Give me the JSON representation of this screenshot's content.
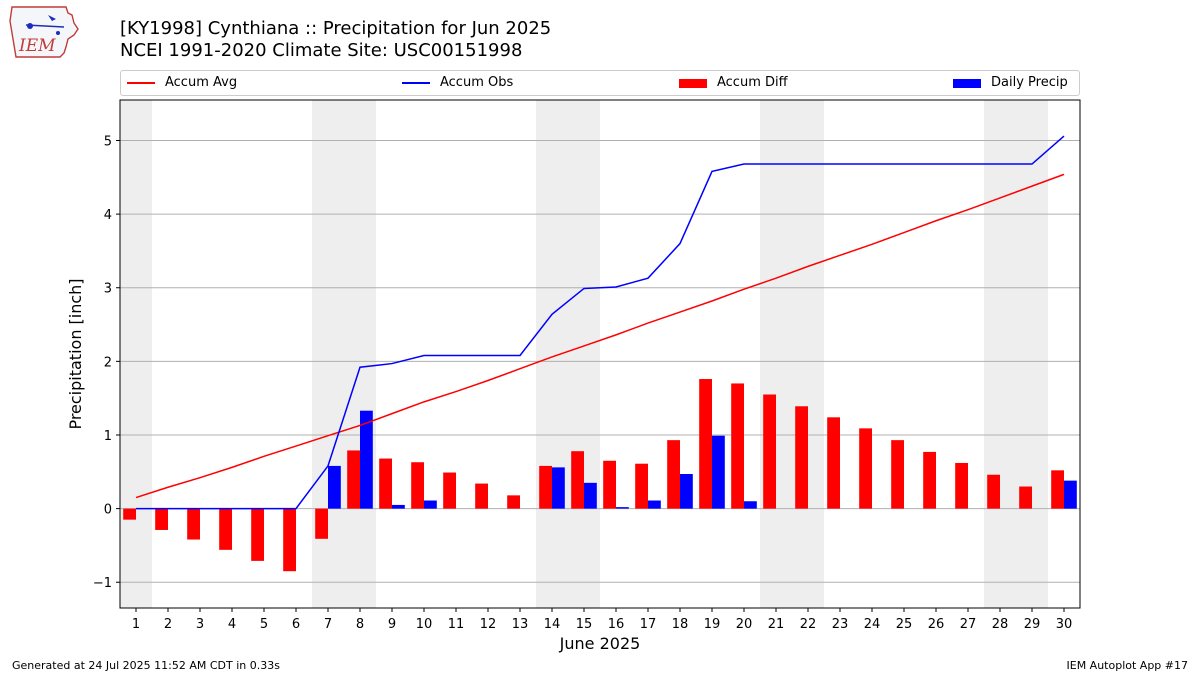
{
  "header": {
    "title": "[KY1998] Cynthiana :: Precipitation for Jun 2025",
    "subtitle": "NCEI 1991-2020 Climate Site: USC00151998",
    "logo_text": "IEM"
  },
  "footer": {
    "generated": "Generated at 24 Jul 2025 11:52 AM CDT in 0.33s",
    "app": "IEM Autoplot App #17"
  },
  "colors": {
    "accum_avg": "#ff0000",
    "accum_obs": "#0000ff",
    "accum_diff": "#ff0000",
    "daily_precip": "#0000ff",
    "weekend_shade": "#eeeeee",
    "grid": "#b0b0b0"
  },
  "chart_data": {
    "type": "bar",
    "title": "[KY1998] Cynthiana :: Precipitation for Jun 2025",
    "subtitle": "NCEI 1991-2020 Climate Site: USC00151998",
    "xlabel": "June 2025",
    "ylabel": "Precipitation [inch]",
    "ylim": [
      -1.35,
      5.55
    ],
    "xlim": [
      0.5,
      30.5
    ],
    "yticks": [
      -1,
      0,
      1,
      2,
      3,
      4,
      5
    ],
    "ytick_labels": [
      "−1",
      "0",
      "1",
      "2",
      "3",
      "4",
      "5"
    ],
    "grid": "horizontal",
    "legend_placement": "top",
    "categories": [
      1,
      2,
      3,
      4,
      5,
      6,
      7,
      8,
      9,
      10,
      11,
      12,
      13,
      14,
      15,
      16,
      17,
      18,
      19,
      20,
      21,
      22,
      23,
      24,
      25,
      26,
      27,
      28,
      29,
      30
    ],
    "weekend_days": [
      1,
      7,
      8,
      14,
      15,
      21,
      22,
      28,
      29
    ],
    "series": [
      {
        "name": "Accum Avg",
        "kind": "line",
        "values": [
          0.15,
          0.29,
          0.42,
          0.56,
          0.71,
          0.85,
          0.99,
          1.13,
          1.29,
          1.45,
          1.59,
          1.74,
          1.9,
          2.06,
          2.21,
          2.36,
          2.52,
          2.67,
          2.82,
          2.98,
          3.13,
          3.29,
          3.44,
          3.59,
          3.75,
          3.91,
          4.06,
          4.22,
          4.38,
          4.54
        ]
      },
      {
        "name": "Accum Obs",
        "kind": "line",
        "values": [
          0,
          0,
          0,
          0,
          0,
          0,
          0.58,
          1.92,
          1.97,
          2.08,
          2.08,
          2.08,
          2.08,
          2.64,
          2.99,
          3.01,
          3.13,
          3.6,
          4.58,
          4.68,
          4.68,
          4.68,
          4.68,
          4.68,
          4.68,
          4.68,
          4.68,
          4.68,
          4.68,
          5.06
        ]
      },
      {
        "name": "Accum Diff",
        "kind": "bar",
        "values": [
          -0.15,
          -0.29,
          -0.42,
          -0.56,
          -0.71,
          -0.85,
          -0.41,
          0.79,
          0.68,
          0.63,
          0.49,
          0.34,
          0.18,
          0.58,
          0.78,
          0.65,
          0.61,
          0.93,
          1.76,
          1.7,
          1.55,
          1.39,
          1.24,
          1.09,
          0.93,
          0.77,
          0.62,
          0.46,
          0.3,
          0.52
        ]
      },
      {
        "name": "Daily Precip",
        "kind": "bar",
        "values": [
          0,
          0,
          0,
          0,
          0,
          0,
          0.58,
          1.33,
          0.05,
          0.11,
          0,
          0,
          0,
          0.56,
          0.35,
          0.02,
          0.11,
          0.47,
          0.99,
          0.1,
          0,
          0,
          0,
          0,
          0,
          0,
          0,
          0,
          0,
          0.38
        ]
      }
    ]
  }
}
